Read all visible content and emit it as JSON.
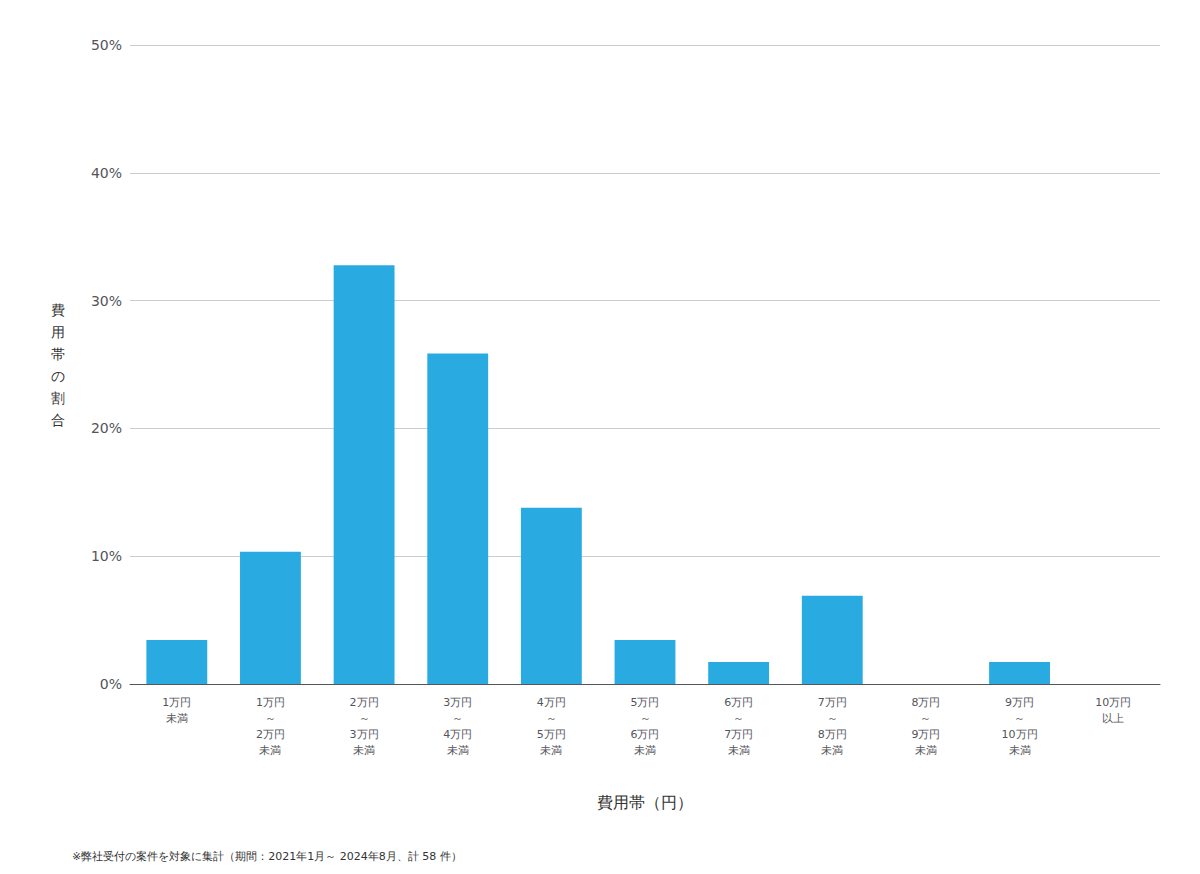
{
  "chart_data": {
    "type": "bar",
    "categories": [
      "1万円\n未満",
      "1万円\n～\n2万円\n未満",
      "2万円\n～\n3万円\n未満",
      "3万円\n～\n4万円\n未満",
      "4万円\n～\n5万円\n未満",
      "5万円\n～\n6万円\n未満",
      "6万円\n～\n7万円\n未満",
      "7万円\n～\n8万円\n未満",
      "8万円\n～\n9万円\n未満",
      "9万円\n～\n10万円\n未満",
      "10万円\n以上"
    ],
    "values": [
      3.448,
      10.345,
      32.759,
      25.862,
      13.793,
      3.448,
      1.724,
      6.897,
      0.0,
      1.724,
      0.0
    ],
    "color": "#29ABE2",
    "xlabel": "費用帯（円）",
    "ylabel": "費\n用\n帯\nの\n割\n合",
    "annotations": [
      "※弊社受付の案件を対象に集計（期間：2021年1月～ 2024年8月、計 58 件）"
    ],
    "ylim": [
      0,
      50
    ],
    "yticks": [
      {
        "value": 0,
        "label": "0%"
      },
      {
        "value": 10,
        "label": "10%"
      },
      {
        "value": 20,
        "label": "20%"
      },
      {
        "value": 30,
        "label": "30%"
      },
      {
        "value": 40,
        "label": "40%"
      },
      {
        "value": 50,
        "label": "50%"
      }
    ],
    "grid": true
  }
}
